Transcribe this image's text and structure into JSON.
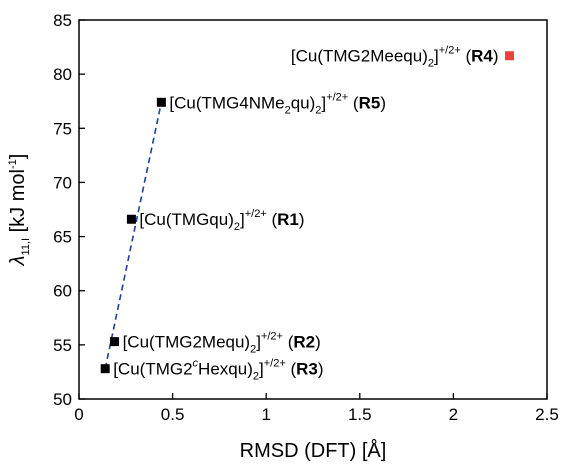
{
  "chart_data": {
    "type": "scatter",
    "xlabel": "RMSD (DFT) [Å]",
    "ylabel": {
      "symbol": "λ",
      "subscript": "11,I",
      "unit_pre": " [kJ mol",
      "unit_sup": "-1",
      "unit_post": "]"
    },
    "xlim": [
      0,
      2.5
    ],
    "ylim": [
      50,
      85
    ],
    "xticks": [
      "0",
      "0.5",
      "1",
      "1.5",
      "2",
      "2.5"
    ],
    "yticks": [
      "50",
      "55",
      "60",
      "65",
      "70",
      "75",
      "80",
      "85"
    ],
    "grid": false,
    "colors": {
      "points": "#000000",
      "highlight": "#e8413c",
      "fit_line": "#1f3f9a"
    },
    "fit_line": {
      "style": "dashed",
      "x": [
        0.14,
        0.44
      ],
      "y": [
        52.8,
        77.4
      ]
    },
    "points": [
      {
        "x": 0.44,
        "y": 77.4,
        "color": "black",
        "label": {
          "pre": "[Cu(TMG4NMe",
          "sub": "2",
          "mid": "qu)",
          "sub2": "2",
          "close": "]",
          "sup": "+/2+",
          "id": "R5"
        }
      },
      {
        "x": 2.3,
        "y": 81.7,
        "color": "red",
        "label": {
          "pre": "[Cu(TMG2Meequ)",
          "sub": "2",
          "close": "]",
          "sup": "+/2+",
          "id": "R4"
        }
      },
      {
        "x": 0.28,
        "y": 66.6,
        "color": "black",
        "label": {
          "pre": "[Cu(TMGqu)",
          "sub": "2",
          "close": "]",
          "sup": "+/2+",
          "id": "R1"
        }
      },
      {
        "x": 0.19,
        "y": 55.3,
        "color": "black",
        "label": {
          "pre": "[Cu(TMG2Mequ)",
          "sub": "2",
          "close": "]",
          "sup": "+/2+",
          "id": "R2"
        }
      },
      {
        "x": 0.14,
        "y": 52.8,
        "color": "black",
        "label": {
          "pre": "[Cu(TMG2",
          "supc": "c",
          "mid": "Hexqu)",
          "sub2": "2",
          "close": "]",
          "sup": "+/2+",
          "id": "R3"
        }
      }
    ]
  }
}
